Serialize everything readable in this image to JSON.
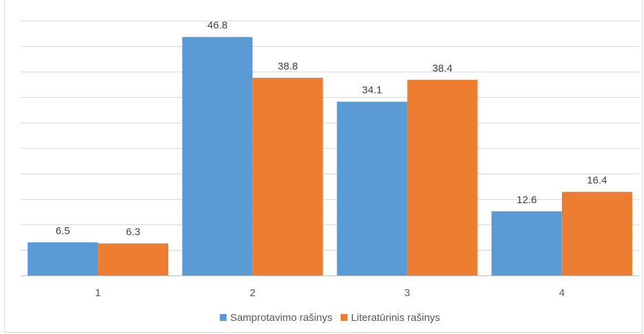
{
  "chart_data": {
    "type": "bar",
    "categories": [
      "1",
      "2",
      "3",
      "4"
    ],
    "series": [
      {
        "name": "Samprotavimo rašinys",
        "values": [
          6.5,
          46.8,
          34.1,
          12.6
        ],
        "color": "#5b9bd5"
      },
      {
        "name": "Literatūrinis rašinys",
        "values": [
          6.3,
          38.8,
          38.4,
          16.4
        ],
        "color": "#ed7d31"
      }
    ],
    "ylim": [
      0,
      50
    ],
    "grid": true,
    "legend": "bottom-center"
  }
}
